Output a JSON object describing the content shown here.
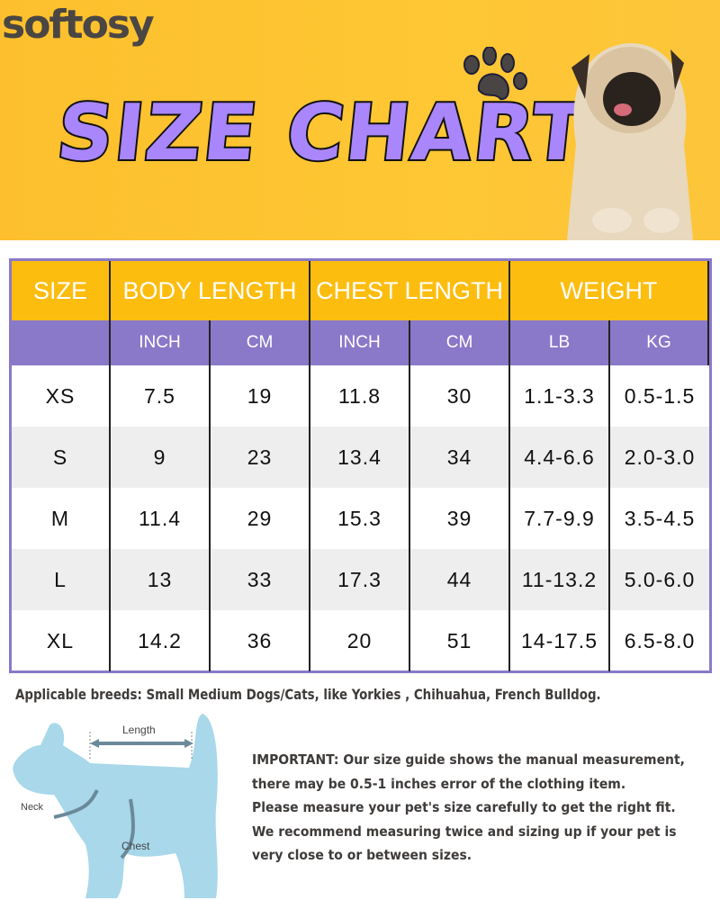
{
  "brand": "softosy",
  "title": "SIZE CHART",
  "colors": {
    "banner": "#fec733",
    "title": "#a986fb",
    "header": "#fdbd0f",
    "subheader": "#8a79c9",
    "alt_row": "#eeeeee"
  },
  "table": {
    "headers": [
      "SIZE",
      "BODY LENGTH",
      "CHEST LENGTH",
      "WEIGHT"
    ],
    "subheaders": [
      "",
      "INCH",
      "CM",
      "INCH",
      "CM",
      "LB",
      "KG"
    ],
    "rows": [
      [
        "XS",
        "7.5",
        "19",
        "11.8",
        "30",
        "1.1-3.3",
        "0.5-1.5"
      ],
      [
        "S",
        "9",
        "23",
        "13.4",
        "34",
        "4.4-6.6",
        "2.0-3.0"
      ],
      [
        "M",
        "11.4",
        "29",
        "15.3",
        "39",
        "7.7-9.9",
        "3.5-4.5"
      ],
      [
        "L",
        "13",
        "33",
        "17.3",
        "44",
        "11-13.2",
        "5.0-6.0"
      ],
      [
        "XL",
        "14.2",
        "36",
        "20",
        "51",
        "14-17.5",
        "6.5-8.0"
      ]
    ]
  },
  "breeds": "Applicable breeds: Small Medium Dogs/Cats, like Yorkies , Chihuahua, French Bulldog.",
  "diagram": {
    "length": "Length",
    "neck": "Neck",
    "chest": "Chest"
  },
  "important": [
    "IMPORTANT: Our size guide shows the manual measurement,",
    "there may be 0.5-1 inches error of the clothing item.",
    "Please measure your pet's size carefully to get the right fit.",
    "We recommend measuring twice and sizing up if your pet is",
    "very close to or between sizes."
  ]
}
